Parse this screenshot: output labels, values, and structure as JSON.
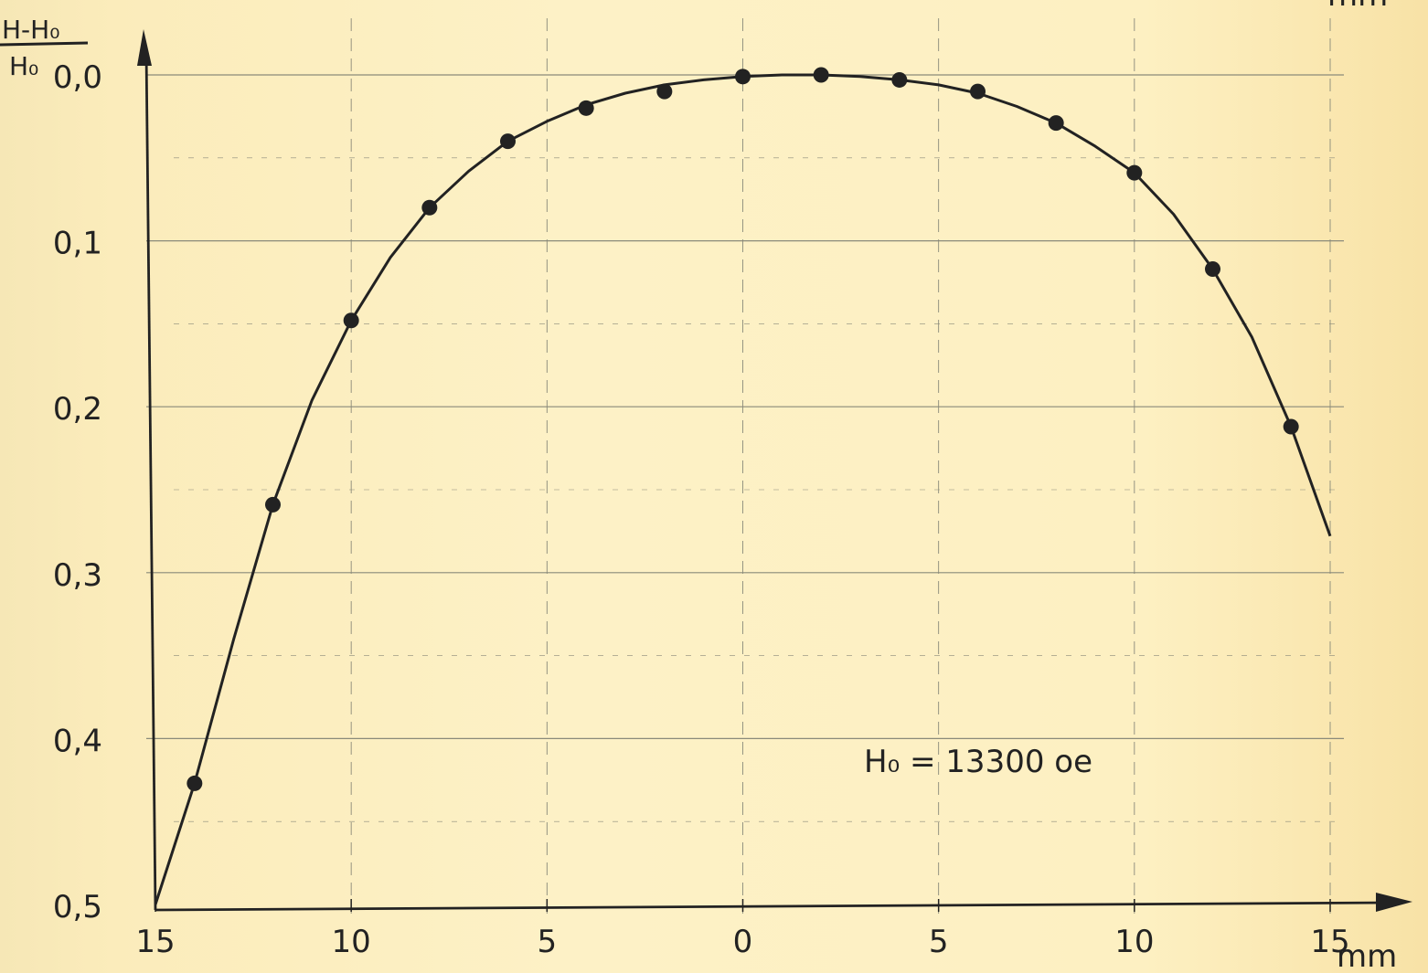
{
  "chart_data": {
    "type": "scatter",
    "title": "",
    "ylabel_numerator": "H-H₀",
    "ylabel_denominator": "H₀",
    "xlabel": "mm",
    "top_right_unit": "mm",
    "annotation": "H₀ = 13300 oe",
    "x_ticks": [
      -15,
      -10,
      -5,
      0,
      5,
      10,
      15
    ],
    "x_tick_labels": [
      "15",
      "10",
      "5",
      "0",
      "5",
      "10",
      "15"
    ],
    "y_ticks": [
      0.0,
      0.1,
      0.2,
      0.3,
      0.4,
      0.5
    ],
    "y_tick_labels": [
      "0,0",
      "0,1",
      "0,2",
      "0,3",
      "0,4",
      "0,5"
    ],
    "xlim": [
      -15,
      15
    ],
    "ylim": [
      0.0,
      0.5
    ],
    "y_inverted": true,
    "grid": true,
    "series": [
      {
        "x": [
          -14,
          -12,
          -10,
          -8,
          -6,
          -4,
          -2,
          0,
          2,
          4,
          6,
          8,
          10,
          12,
          14
        ],
        "y": [
          0.427,
          0.259,
          0.148,
          0.08,
          0.04,
          0.02,
          0.01,
          0.001,
          0.0,
          0.003,
          0.01,
          0.029,
          0.059,
          0.117,
          0.212
        ]
      }
    ],
    "fit_curve": {
      "x": [
        -15,
        -14,
        -13,
        -12,
        -11,
        -10,
        -9,
        -8,
        -7,
        -6,
        -5,
        -4,
        -3,
        -2,
        -1,
        0,
        1,
        2,
        3,
        4,
        5,
        6,
        7,
        8,
        9,
        10,
        11,
        12,
        13,
        14,
        15
      ],
      "y": [
        0.5,
        0.427,
        0.34,
        0.259,
        0.196,
        0.148,
        0.11,
        0.08,
        0.058,
        0.04,
        0.028,
        0.018,
        0.011,
        0.006,
        0.003,
        0.001,
        0.0,
        0.0,
        0.001,
        0.003,
        0.006,
        0.011,
        0.019,
        0.029,
        0.043,
        0.059,
        0.084,
        0.117,
        0.158,
        0.212,
        0.278
      ]
    },
    "colors": {
      "ink": "#222222",
      "grid": "#8a8a7a",
      "background": "#fdf0c2"
    }
  }
}
